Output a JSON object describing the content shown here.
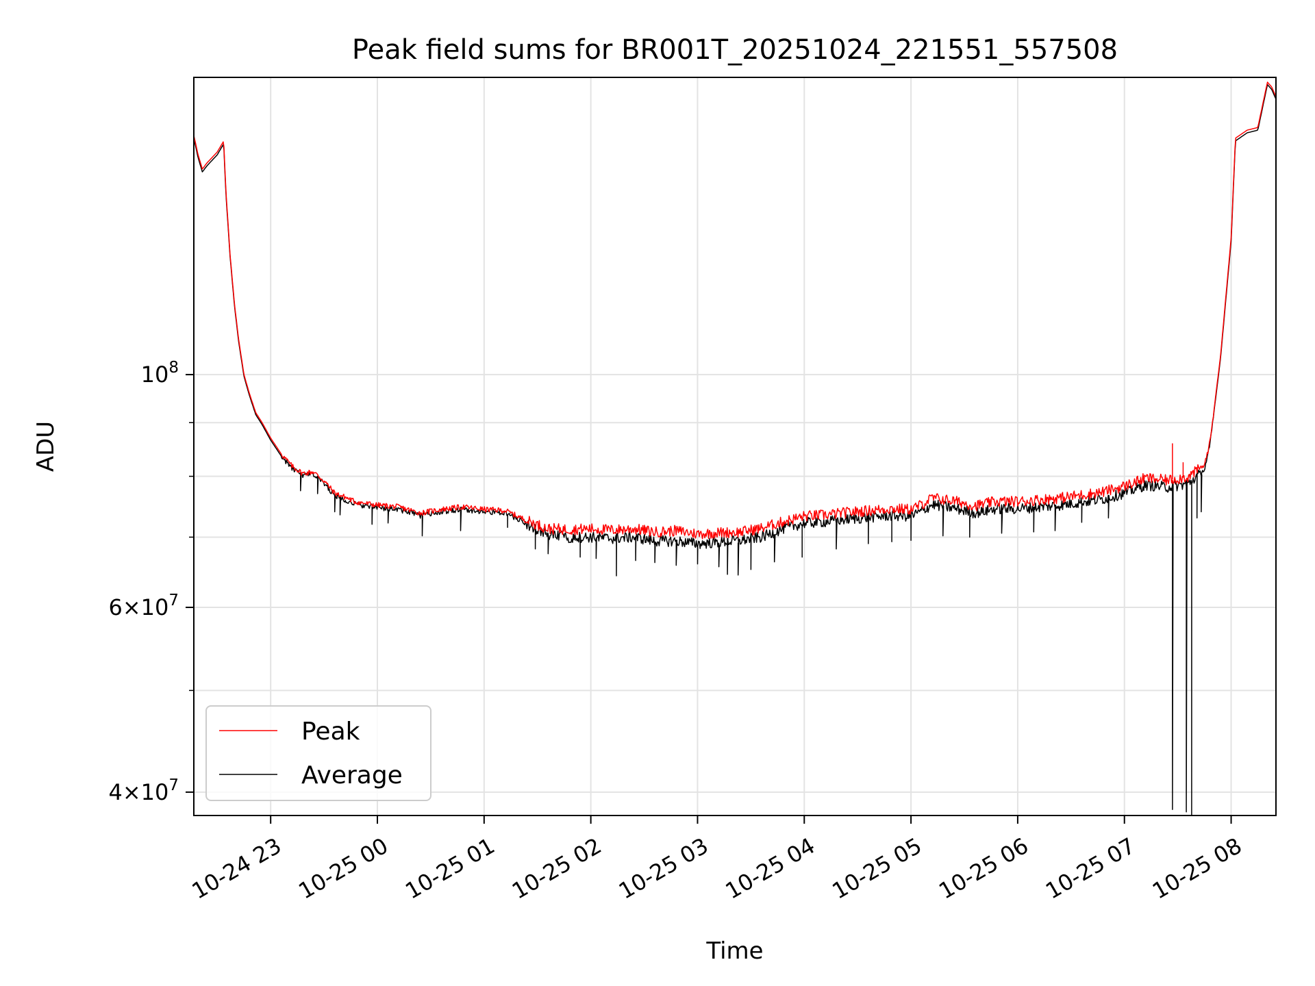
{
  "chart_data": {
    "type": "line",
    "title": "Peak field sums for BR001T_20251024_221551_557508",
    "xlabel": "Time",
    "ylabel": "ADU",
    "yscale": "log",
    "xlim_hours": [
      -0.72,
      9.42
    ],
    "ylim": [
      38000000,
      192000000
    ],
    "x_unit": "hours since 10-24 23:00",
    "grid": true,
    "legend_position": "lower-left",
    "x_ticks": [
      {
        "value": 0,
        "label": "10-24 23"
      },
      {
        "value": 1,
        "label": "10-25 00"
      },
      {
        "value": 2,
        "label": "10-25 01"
      },
      {
        "value": 3,
        "label": "10-25 02"
      },
      {
        "value": 4,
        "label": "10-25 03"
      },
      {
        "value": 5,
        "label": "10-25 04"
      },
      {
        "value": 6,
        "label": "10-25 05"
      },
      {
        "value": 7,
        "label": "10-25 06"
      },
      {
        "value": 8,
        "label": "10-25 07"
      },
      {
        "value": 9,
        "label": "10-25 08"
      }
    ],
    "y_major_ticks": [
      {
        "value": 40000000,
        "base": "4",
        "exp": "7"
      },
      {
        "value": 60000000,
        "base": "6",
        "exp": "7"
      },
      {
        "value": 100000000,
        "base": "",
        "exp": "8"
      }
    ],
    "y_minor_ticks": [
      50000000,
      70000000,
      80000000,
      90000000
    ],
    "series": [
      {
        "name": "Peak",
        "color": "#ff0000",
        "points": [
          [
            -0.72,
            169000000
          ],
          [
            -0.68,
            162000000
          ],
          [
            -0.64,
            157000000
          ],
          [
            -0.6,
            159000000
          ],
          [
            -0.55,
            161000000
          ],
          [
            -0.5,
            163000000
          ],
          [
            -0.44,
            167000000
          ],
          [
            -0.42,
            150000000
          ],
          [
            -0.38,
            130000000
          ],
          [
            -0.34,
            117000000
          ],
          [
            -0.3,
            108000000
          ],
          [
            -0.25,
            100000000
          ],
          [
            -0.2,
            96000000
          ],
          [
            -0.14,
            92000000
          ],
          [
            -0.08,
            90000000
          ],
          [
            0.0,
            87000000
          ],
          [
            0.1,
            84000000
          ],
          [
            0.2,
            81800000
          ],
          [
            0.3,
            80500000
          ],
          [
            0.4,
            80800000
          ],
          [
            0.5,
            79200000
          ],
          [
            0.6,
            77100000
          ],
          [
            0.7,
            76400000
          ],
          [
            0.8,
            75600000
          ],
          [
            1.0,
            75100000
          ],
          [
            1.2,
            74800000
          ],
          [
            1.4,
            73800000
          ],
          [
            1.6,
            74400000
          ],
          [
            1.8,
            74800000
          ],
          [
            2.0,
            74400000
          ],
          [
            2.2,
            74200000
          ],
          [
            2.4,
            72600000
          ],
          [
            2.6,
            71300000
          ],
          [
            2.8,
            71200000
          ],
          [
            3.0,
            71300000
          ],
          [
            3.2,
            71100000
          ],
          [
            3.4,
            71300000
          ],
          [
            3.6,
            70800000
          ],
          [
            3.8,
            71000000
          ],
          [
            4.0,
            70500000
          ],
          [
            4.2,
            70700000
          ],
          [
            4.4,
            70800000
          ],
          [
            4.6,
            71400000
          ],
          [
            4.8,
            72400000
          ],
          [
            5.0,
            73300000
          ],
          [
            5.2,
            73500000
          ],
          [
            5.4,
            73900000
          ],
          [
            5.6,
            74200000
          ],
          [
            5.8,
            74500000
          ],
          [
            6.0,
            74400000
          ],
          [
            6.1,
            75200000
          ],
          [
            6.2,
            76300000
          ],
          [
            6.4,
            75800000
          ],
          [
            6.6,
            75000000
          ],
          [
            6.8,
            75700000
          ],
          [
            7.0,
            75700000
          ],
          [
            7.2,
            76000000
          ],
          [
            7.4,
            76300000
          ],
          [
            7.6,
            76800000
          ],
          [
            7.8,
            77300000
          ],
          [
            8.0,
            78300000
          ],
          [
            8.2,
            79700000
          ],
          [
            8.4,
            79300000
          ],
          [
            8.6,
            79900000
          ],
          [
            8.75,
            82000000
          ],
          [
            8.8,
            86000000
          ],
          [
            8.9,
            104000000
          ],
          [
            9.0,
            135000000
          ],
          [
            9.04,
            168000000
          ],
          [
            9.15,
            171000000
          ],
          [
            9.25,
            172000000
          ],
          [
            9.34,
            190000000
          ],
          [
            9.38,
            188000000
          ],
          [
            9.42,
            184000000
          ]
        ],
        "spikes": []
      },
      {
        "name": "Average",
        "color": "#000000",
        "points": [
          [
            -0.72,
            168000000
          ],
          [
            -0.68,
            161000000
          ],
          [
            -0.64,
            156000000
          ],
          [
            -0.6,
            158000000
          ],
          [
            -0.55,
            160000000
          ],
          [
            -0.5,
            162000000
          ],
          [
            -0.44,
            166000000
          ],
          [
            -0.42,
            149000000
          ],
          [
            -0.38,
            129500000
          ],
          [
            -0.34,
            116500000
          ],
          [
            -0.3,
            107500000
          ],
          [
            -0.25,
            99600000
          ],
          [
            -0.2,
            95600000
          ],
          [
            -0.14,
            91600000
          ],
          [
            -0.08,
            89600000
          ],
          [
            0.0,
            86600000
          ],
          [
            0.1,
            83600000
          ],
          [
            0.2,
            81400000
          ],
          [
            0.3,
            80100000
          ],
          [
            0.4,
            80400000
          ],
          [
            0.5,
            78800000
          ],
          [
            0.6,
            76700000
          ],
          [
            0.7,
            76000000
          ],
          [
            0.8,
            75200000
          ],
          [
            1.0,
            74700000
          ],
          [
            1.2,
            74400000
          ],
          [
            1.4,
            73400000
          ],
          [
            1.6,
            74000000
          ],
          [
            1.8,
            74400000
          ],
          [
            2.0,
            74000000
          ],
          [
            2.2,
            73800000
          ],
          [
            2.4,
            72100000
          ],
          [
            2.6,
            70300000
          ],
          [
            2.8,
            70000000
          ],
          [
            3.0,
            70000000
          ],
          [
            3.2,
            69800000
          ],
          [
            3.4,
            70000000
          ],
          [
            3.6,
            69400000
          ],
          [
            3.8,
            69400000
          ],
          [
            4.0,
            69000000
          ],
          [
            4.2,
            69200000
          ],
          [
            4.4,
            69500000
          ],
          [
            4.6,
            70000000
          ],
          [
            4.8,
            71300000
          ],
          [
            5.0,
            72200000
          ],
          [
            5.2,
            72400000
          ],
          [
            5.4,
            72800000
          ],
          [
            5.6,
            73100000
          ],
          [
            5.8,
            73400000
          ],
          [
            6.0,
            73300000
          ],
          [
            6.1,
            74100000
          ],
          [
            6.2,
            75200000
          ],
          [
            6.4,
            74600000
          ],
          [
            6.6,
            73800000
          ],
          [
            6.8,
            74500000
          ],
          [
            7.0,
            74500000
          ],
          [
            7.2,
            74800000
          ],
          [
            7.4,
            75100000
          ],
          [
            7.6,
            75600000
          ],
          [
            7.8,
            76100000
          ],
          [
            8.0,
            77100000
          ],
          [
            8.2,
            78500000
          ],
          [
            8.4,
            78100000
          ],
          [
            8.6,
            78700000
          ],
          [
            8.75,
            81200000
          ],
          [
            8.8,
            85400000
          ],
          [
            8.9,
            103500000
          ],
          [
            9.0,
            134000000
          ],
          [
            9.04,
            167000000
          ],
          [
            9.15,
            170000000
          ],
          [
            9.25,
            171000000
          ],
          [
            9.34,
            189000000
          ],
          [
            9.38,
            187000000
          ],
          [
            9.42,
            183000000
          ]
        ],
        "spikes": [
          [
            0.28,
            77500000
          ],
          [
            0.44,
            77000000
          ],
          [
            0.6,
            74000000
          ],
          [
            0.65,
            73500000
          ],
          [
            0.95,
            72000000
          ],
          [
            1.1,
            72200000
          ],
          [
            1.42,
            70200000
          ],
          [
            1.78,
            71000000
          ],
          [
            2.22,
            71500000
          ],
          [
            2.48,
            68200000
          ],
          [
            2.6,
            67500000
          ],
          [
            2.9,
            67000000
          ],
          [
            3.05,
            66800000
          ],
          [
            3.24,
            64300000
          ],
          [
            3.42,
            66500000
          ],
          [
            3.6,
            66200000
          ],
          [
            3.8,
            65800000
          ],
          [
            4.0,
            66000000
          ],
          [
            4.2,
            65600000
          ],
          [
            4.28,
            64500000
          ],
          [
            4.38,
            64400000
          ],
          [
            4.5,
            65200000
          ],
          [
            4.72,
            66300000
          ],
          [
            4.98,
            67000000
          ],
          [
            5.3,
            68200000
          ],
          [
            5.6,
            69000000
          ],
          [
            5.82,
            69300000
          ],
          [
            6.0,
            69500000
          ],
          [
            6.3,
            70200000
          ],
          [
            6.55,
            70000000
          ],
          [
            6.85,
            70600000
          ],
          [
            7.15,
            70800000
          ],
          [
            7.35,
            71000000
          ],
          [
            7.6,
            72300000
          ],
          [
            7.85,
            73000000
          ],
          [
            8.45,
            38500000
          ],
          [
            8.58,
            38300000
          ],
          [
            8.63,
            37500000
          ],
          [
            8.68,
            73000000
          ],
          [
            8.72,
            74000000
          ]
        ]
      }
    ]
  }
}
